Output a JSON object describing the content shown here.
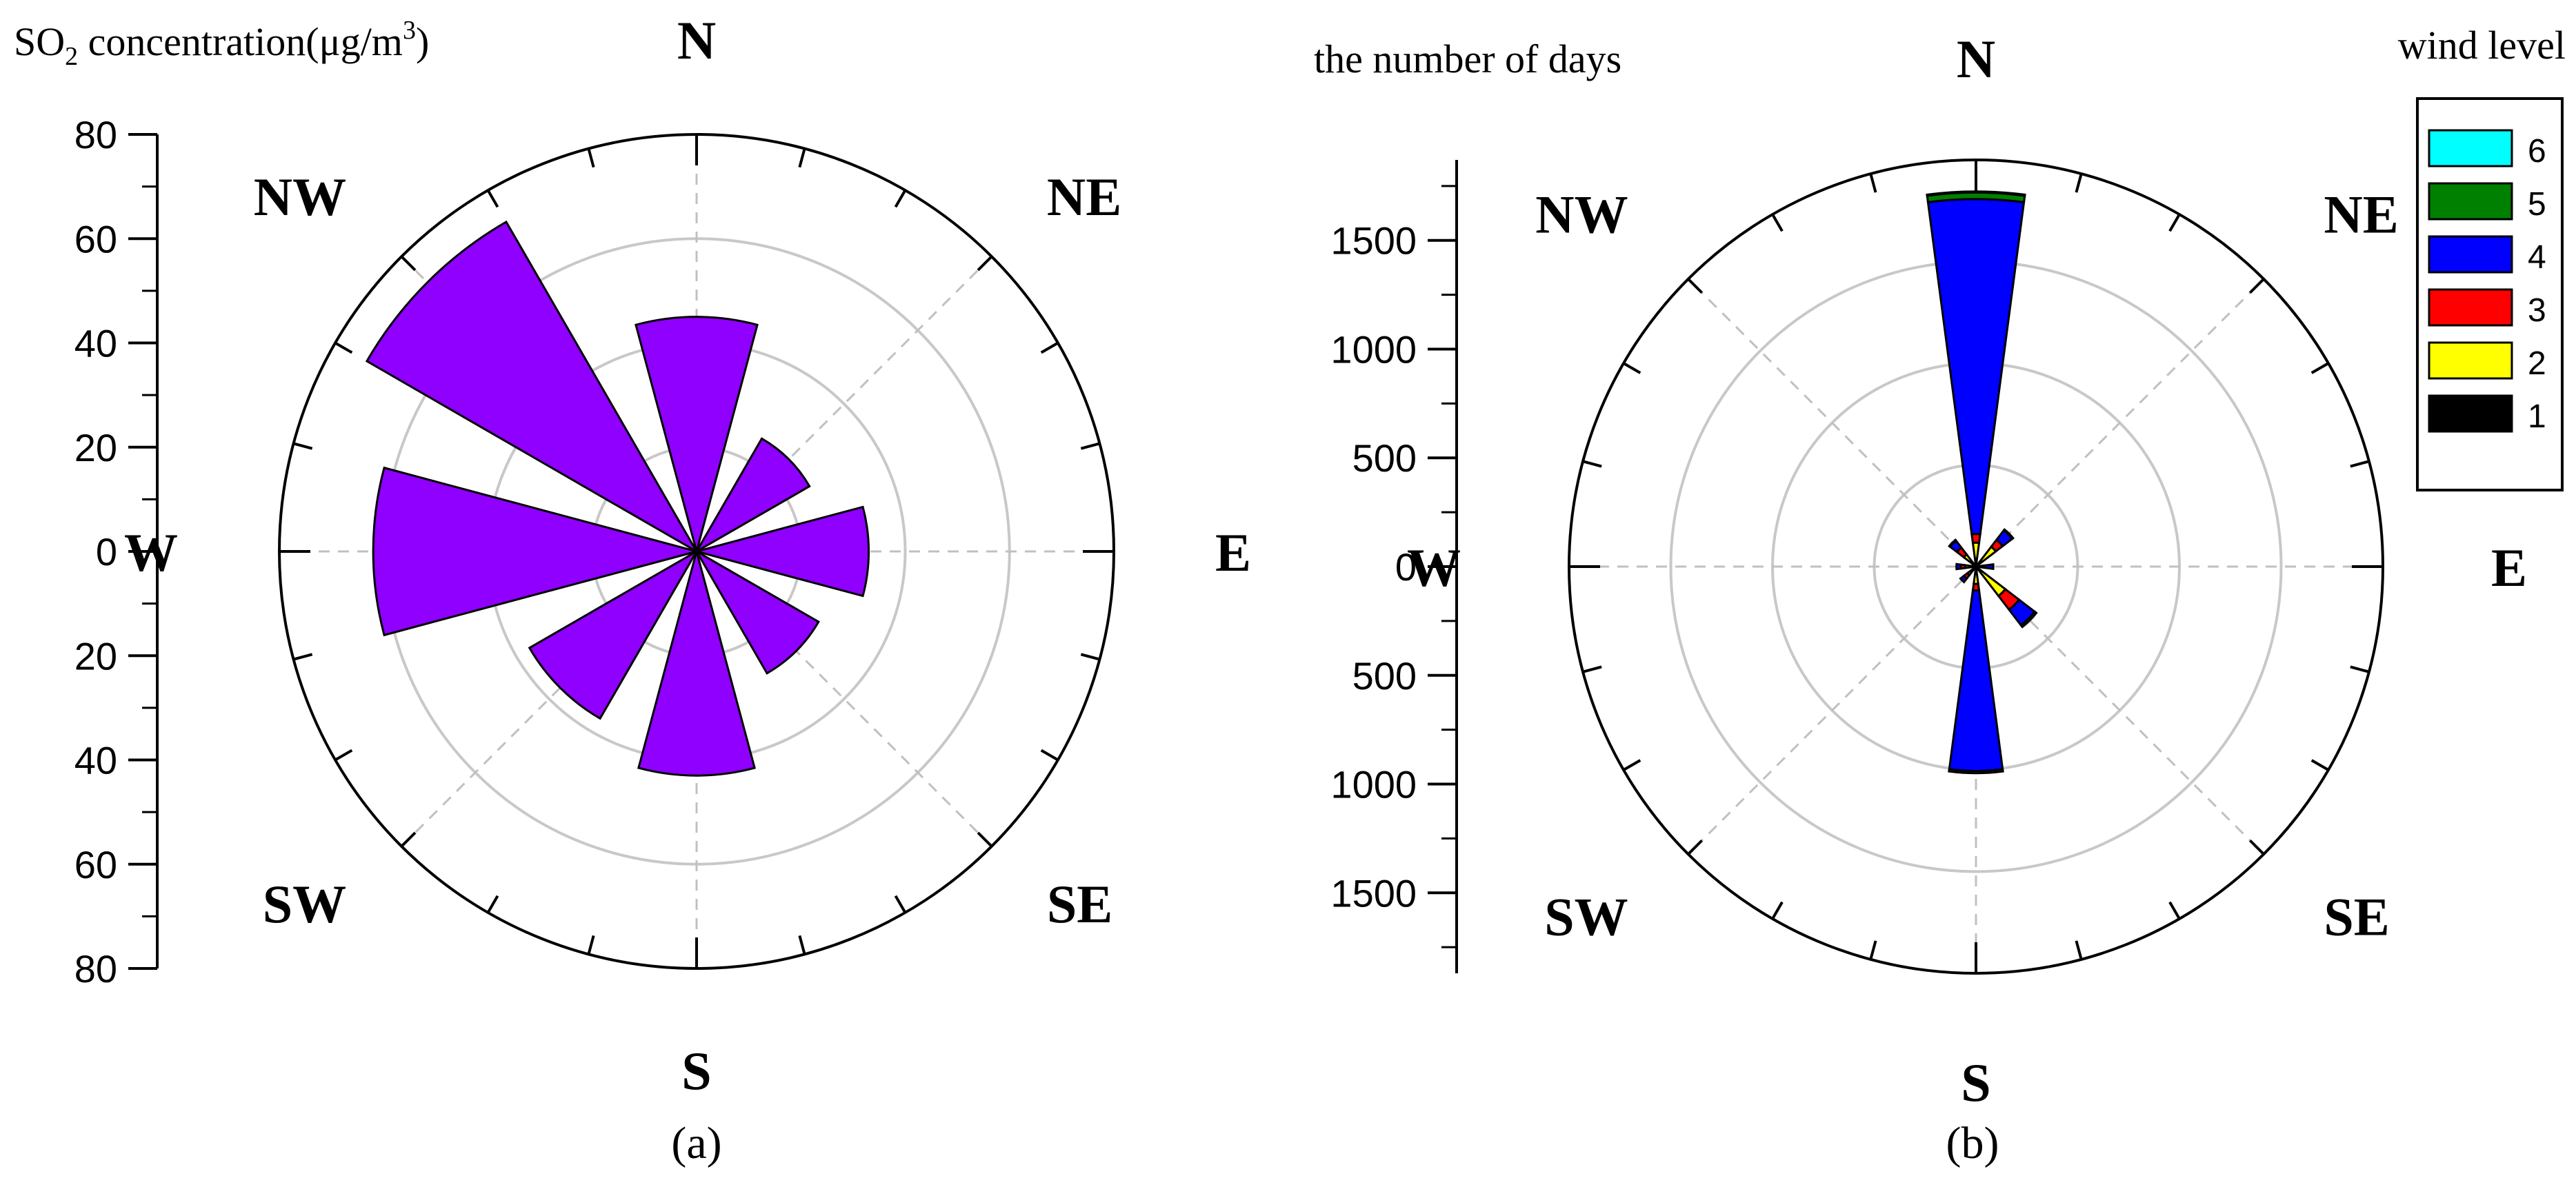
{
  "chart_data": [
    {
      "type": "polar-bar",
      "panel_label": "(a)",
      "axis_title": {
        "prefix": "SO",
        "sub": "2",
        "middle": " concentration(μg/m",
        "sup": "3",
        "suffix": ")"
      },
      "radial_ticks": [
        "80",
        "60",
        "40",
        "20",
        "0",
        "20",
        "40",
        "60",
        "80"
      ],
      "rmax": 80,
      "directions": [
        "N",
        "NE",
        "E",
        "SE",
        "S",
        "SW",
        "W",
        "NW"
      ],
      "bar_color": "#8f00ff",
      "values": [
        45,
        25,
        33,
        27,
        43,
        37,
        62,
        73
      ]
    },
    {
      "type": "stacked-polar-bar",
      "panel_label": "(b)",
      "axis_title": "the number of days",
      "radial_ticks": [
        "1500",
        "1000",
        "500",
        "0",
        "500",
        "1000",
        "1500"
      ],
      "rmax": 1870,
      "directions": [
        "N",
        "NE",
        "E",
        "SE",
        "S",
        "SW",
        "W",
        "NW"
      ],
      "legend_title": "wind level",
      "legend": [
        {
          "label": "6",
          "color": "#00ffff"
        },
        {
          "label": "5",
          "color": "#008000"
        },
        {
          "label": "4",
          "color": "#0000ff"
        },
        {
          "label": "3",
          "color": "#ff0000"
        },
        {
          "label": "2",
          "color": "#ffff00"
        },
        {
          "label": "1",
          "color": "#000000"
        }
      ],
      "series": [
        {
          "name": "1",
          "values": [
            20,
            15,
            10,
            20,
            20,
            10,
            10,
            10
          ]
        },
        {
          "name": "2",
          "values": [
            90,
            100,
            20,
            150,
            60,
            40,
            40,
            60
          ]
        },
        {
          "name": "3",
          "values": [
            40,
            40,
            10,
            80,
            30,
            20,
            20,
            40
          ]
        },
        {
          "name": "4",
          "values": [
            1540,
            55,
            40,
            90,
            830,
            20,
            20,
            40
          ]
        },
        {
          "name": "5",
          "values": [
            30,
            5,
            0,
            10,
            10,
            0,
            0,
            5
          ]
        },
        {
          "name": "6",
          "values": [
            5,
            0,
            0,
            0,
            0,
            0,
            0,
            0
          ]
        }
      ]
    }
  ]
}
